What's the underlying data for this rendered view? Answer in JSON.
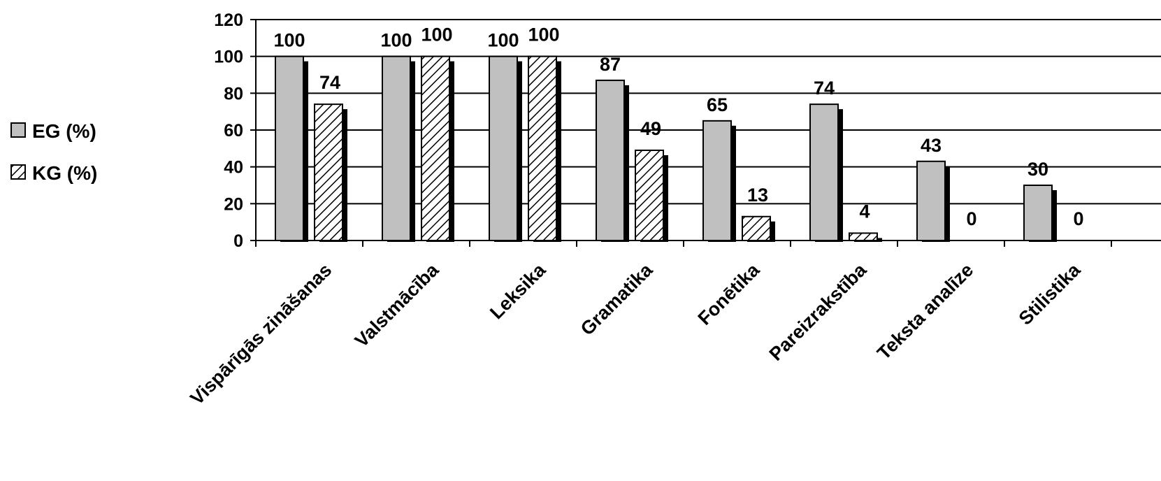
{
  "chart_data": {
    "type": "bar",
    "categories": [
      "Vispārīgās zināšanas",
      "Valstmācība",
      "Leksika",
      "Gramatika",
      "Fonētika",
      "Pareizrakstība",
      "Teksta analīze",
      "Stilistika"
    ],
    "series": [
      {
        "name": "EG (%)",
        "values": [
          100,
          100,
          100,
          87,
          65,
          74,
          43,
          30
        ],
        "labels": [
          "100",
          "100",
          "100",
          "87",
          "65",
          "74",
          "43",
          "30"
        ]
      },
      {
        "name": "KG (%)",
        "values": [
          74,
          100,
          100,
          49,
          13,
          4,
          0,
          0
        ],
        "labels": [
          "74",
          "100",
          "100",
          "49",
          "13",
          "4",
          "0",
          "0"
        ]
      }
    ],
    "y_ticks": [
      "0",
      "20",
      "40",
      "60",
      "80",
      "100",
      "120"
    ],
    "ylim": [
      0,
      120
    ],
    "grid": true,
    "legend_position": "left",
    "colors": {
      "eg_fill": "#c0c0c0",
      "shadow": "#000000",
      "gridline": "#000000"
    }
  }
}
